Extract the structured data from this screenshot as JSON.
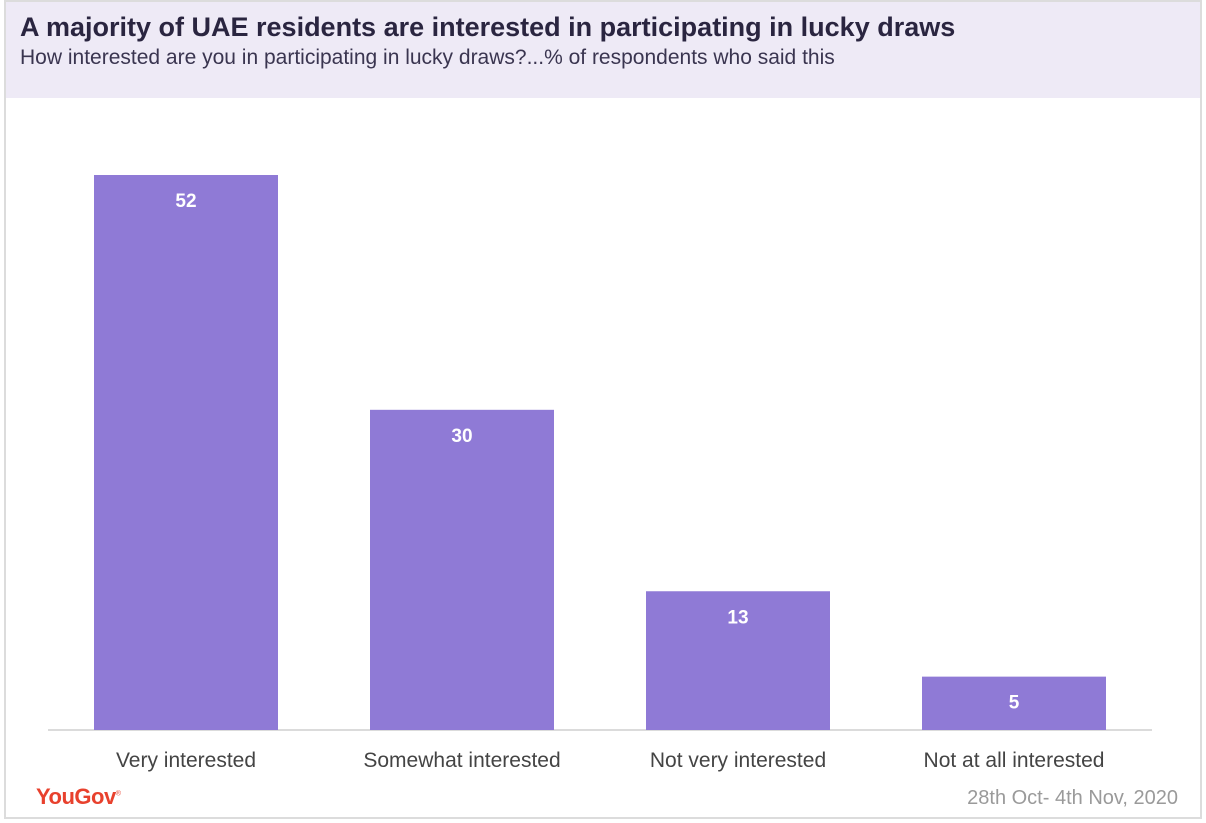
{
  "header": {
    "title": "A majority of UAE residents are interested in participating in lucky draws",
    "subtitle": "How interested are you in participating in lucky draws?...% of respondents who said this"
  },
  "chart_data": {
    "type": "bar",
    "categories": [
      "Very interested",
      "Somewhat interested",
      "Not very interested",
      "Not at all interested"
    ],
    "values": [
      52,
      30,
      13,
      5
    ],
    "data_labels": [
      "52",
      "30",
      "13",
      "5"
    ],
    "ylim": [
      0,
      52
    ],
    "grid": false,
    "legend": "none",
    "colors": {
      "bar": "#8f7ad6",
      "label": "#ffffff",
      "axis": "#cfcfcf",
      "tick_label": "#444444"
    }
  },
  "footer": {
    "brand": "YouGov",
    "brand_mark": "®",
    "date": "28th Oct- 4th Nov, 2020"
  }
}
